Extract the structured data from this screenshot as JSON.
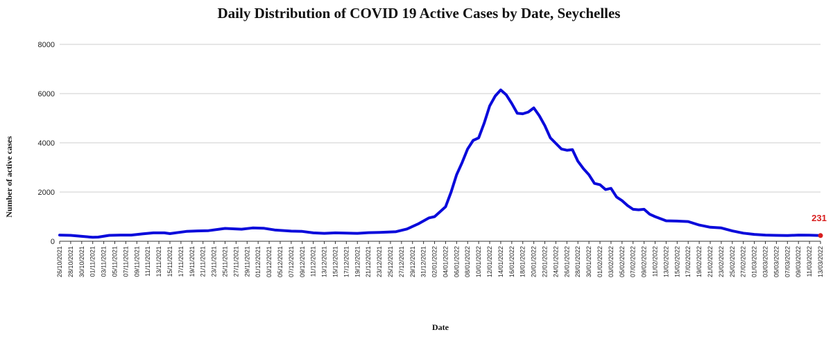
{
  "chart_data": {
    "type": "line",
    "title": "Daily Distribution of COVID 19 Active Cases by Date, Seychelles",
    "xlabel": "Date",
    "ylabel": "Number of active cases",
    "ylim": [
      0,
      8000
    ],
    "yticks": [
      "0",
      "2000",
      "4000",
      "6000",
      "8000"
    ],
    "grid": true,
    "x_start": "2021-10-26",
    "x_end": "2022-03-13",
    "x_tick_labels": [
      "26/10/2021",
      "28/10/2021",
      "30/10/2021",
      "01/11/2021",
      "03/11/2021",
      "05/11/2021",
      "07/11/2021",
      "09/11/2021",
      "11/11/2021",
      "13/11/2021",
      "15/11/2021",
      "17/11/2021",
      "19/11/2021",
      "21/11/2021",
      "23/11/2021",
      "25/11/2021",
      "27/11/2021",
      "29/11/2021",
      "01/12/2021",
      "03/12/2021",
      "05/12/2021",
      "07/12/2021",
      "09/12/2021",
      "11/12/2021",
      "13/12/2021",
      "15/12/2021",
      "17/12/2021",
      "19/12/2021",
      "21/12/2021",
      "23/12/2021",
      "25/12/2021",
      "27/12/2021",
      "29/12/2021",
      "31/12/2021",
      "02/01/2022",
      "04/01/2022",
      "06/01/2022",
      "08/01/2022",
      "10/01/2022",
      "12/01/2022",
      "14/01/2022",
      "16/01/2022",
      "18/01/2022",
      "20/01/2022",
      "22/01/2022",
      "24/01/2022",
      "26/01/2022",
      "28/01/2022",
      "30/01/2022",
      "01/02/2022",
      "03/02/2022",
      "05/02/2022",
      "07/02/2022",
      "09/02/2022",
      "11/02/2022",
      "13/02/2022",
      "15/02/2022",
      "17/02/2022",
      "19/02/2022",
      "21/02/2022",
      "23/02/2022",
      "25/02/2022",
      "27/02/2022",
      "01/03/2022",
      "03/03/2022",
      "05/03/2022",
      "07/03/2022",
      "09/03/2022",
      "11/03/2022",
      "13/03/2022"
    ],
    "series": [
      {
        "name": "",
        "color": "#0a0adb",
        "points": [
          {
            "date": "2021-10-26",
            "value": 250
          },
          {
            "date": "2021-10-28",
            "value": 240
          },
          {
            "date": "2021-10-30",
            "value": 200
          },
          {
            "date": "2021-11-01",
            "value": 160
          },
          {
            "date": "2021-11-02",
            "value": 170
          },
          {
            "date": "2021-11-04",
            "value": 240
          },
          {
            "date": "2021-11-06",
            "value": 250
          },
          {
            "date": "2021-11-08",
            "value": 250
          },
          {
            "date": "2021-11-10",
            "value": 300
          },
          {
            "date": "2021-11-12",
            "value": 340
          },
          {
            "date": "2021-11-14",
            "value": 340
          },
          {
            "date": "2021-11-15",
            "value": 310
          },
          {
            "date": "2021-11-18",
            "value": 400
          },
          {
            "date": "2021-11-20",
            "value": 420
          },
          {
            "date": "2021-11-22",
            "value": 430
          },
          {
            "date": "2021-11-25",
            "value": 520
          },
          {
            "date": "2021-11-28",
            "value": 490
          },
          {
            "date": "2021-11-30",
            "value": 540
          },
          {
            "date": "2021-12-02",
            "value": 530
          },
          {
            "date": "2021-12-04",
            "value": 460
          },
          {
            "date": "2021-12-07",
            "value": 410
          },
          {
            "date": "2021-12-09",
            "value": 400
          },
          {
            "date": "2021-12-11",
            "value": 340
          },
          {
            "date": "2021-12-13",
            "value": 320
          },
          {
            "date": "2021-12-15",
            "value": 340
          },
          {
            "date": "2021-12-17",
            "value": 330
          },
          {
            "date": "2021-12-19",
            "value": 320
          },
          {
            "date": "2021-12-21",
            "value": 350
          },
          {
            "date": "2021-12-23",
            "value": 360
          },
          {
            "date": "2021-12-26",
            "value": 390
          },
          {
            "date": "2021-12-28",
            "value": 500
          },
          {
            "date": "2021-12-30",
            "value": 700
          },
          {
            "date": "2022-01-01",
            "value": 950
          },
          {
            "date": "2022-01-02",
            "value": 1000
          },
          {
            "date": "2022-01-04",
            "value": 1400
          },
          {
            "date": "2022-01-05",
            "value": 2000
          },
          {
            "date": "2022-01-06",
            "value": 2700
          },
          {
            "date": "2022-01-07",
            "value": 3200
          },
          {
            "date": "2022-01-08",
            "value": 3750
          },
          {
            "date": "2022-01-09",
            "value": 4100
          },
          {
            "date": "2022-01-10",
            "value": 4200
          },
          {
            "date": "2022-01-11",
            "value": 4800
          },
          {
            "date": "2022-01-12",
            "value": 5500
          },
          {
            "date": "2022-01-13",
            "value": 5900
          },
          {
            "date": "2022-01-14",
            "value": 6150
          },
          {
            "date": "2022-01-15",
            "value": 5950
          },
          {
            "date": "2022-01-16",
            "value": 5600
          },
          {
            "date": "2022-01-17",
            "value": 5200
          },
          {
            "date": "2022-01-18",
            "value": 5180
          },
          {
            "date": "2022-01-19",
            "value": 5250
          },
          {
            "date": "2022-01-20",
            "value": 5420
          },
          {
            "date": "2022-01-21",
            "value": 5100
          },
          {
            "date": "2022-01-22",
            "value": 4700
          },
          {
            "date": "2022-01-23",
            "value": 4200
          },
          {
            "date": "2022-01-25",
            "value": 3750
          },
          {
            "date": "2022-01-26",
            "value": 3700
          },
          {
            "date": "2022-01-27",
            "value": 3720
          },
          {
            "date": "2022-01-28",
            "value": 3250
          },
          {
            "date": "2022-01-29",
            "value": 2950
          },
          {
            "date": "2022-01-30",
            "value": 2700
          },
          {
            "date": "2022-01-31",
            "value": 2350
          },
          {
            "date": "2022-02-01",
            "value": 2300
          },
          {
            "date": "2022-02-02",
            "value": 2100
          },
          {
            "date": "2022-02-03",
            "value": 2150
          },
          {
            "date": "2022-02-04",
            "value": 1800
          },
          {
            "date": "2022-02-05",
            "value": 1650
          },
          {
            "date": "2022-02-06",
            "value": 1450
          },
          {
            "date": "2022-02-07",
            "value": 1300
          },
          {
            "date": "2022-02-08",
            "value": 1280
          },
          {
            "date": "2022-02-09",
            "value": 1300
          },
          {
            "date": "2022-02-10",
            "value": 1100
          },
          {
            "date": "2022-02-11",
            "value": 1000
          },
          {
            "date": "2022-02-13",
            "value": 830
          },
          {
            "date": "2022-02-15",
            "value": 820
          },
          {
            "date": "2022-02-17",
            "value": 800
          },
          {
            "date": "2022-02-19",
            "value": 660
          },
          {
            "date": "2022-02-21",
            "value": 570
          },
          {
            "date": "2022-02-23",
            "value": 540
          },
          {
            "date": "2022-02-25",
            "value": 420
          },
          {
            "date": "2022-02-27",
            "value": 330
          },
          {
            "date": "2022-03-01",
            "value": 280
          },
          {
            "date": "2022-03-03",
            "value": 250
          },
          {
            "date": "2022-03-05",
            "value": 240
          },
          {
            "date": "2022-03-07",
            "value": 230
          },
          {
            "date": "2022-03-09",
            "value": 250
          },
          {
            "date": "2022-03-11",
            "value": 245
          },
          {
            "date": "2022-03-13",
            "value": 231
          }
        ]
      }
    ],
    "annotations": [
      {
        "date": "2022-03-13",
        "value": 231,
        "label": "231",
        "color": "#d81e1e"
      }
    ]
  }
}
